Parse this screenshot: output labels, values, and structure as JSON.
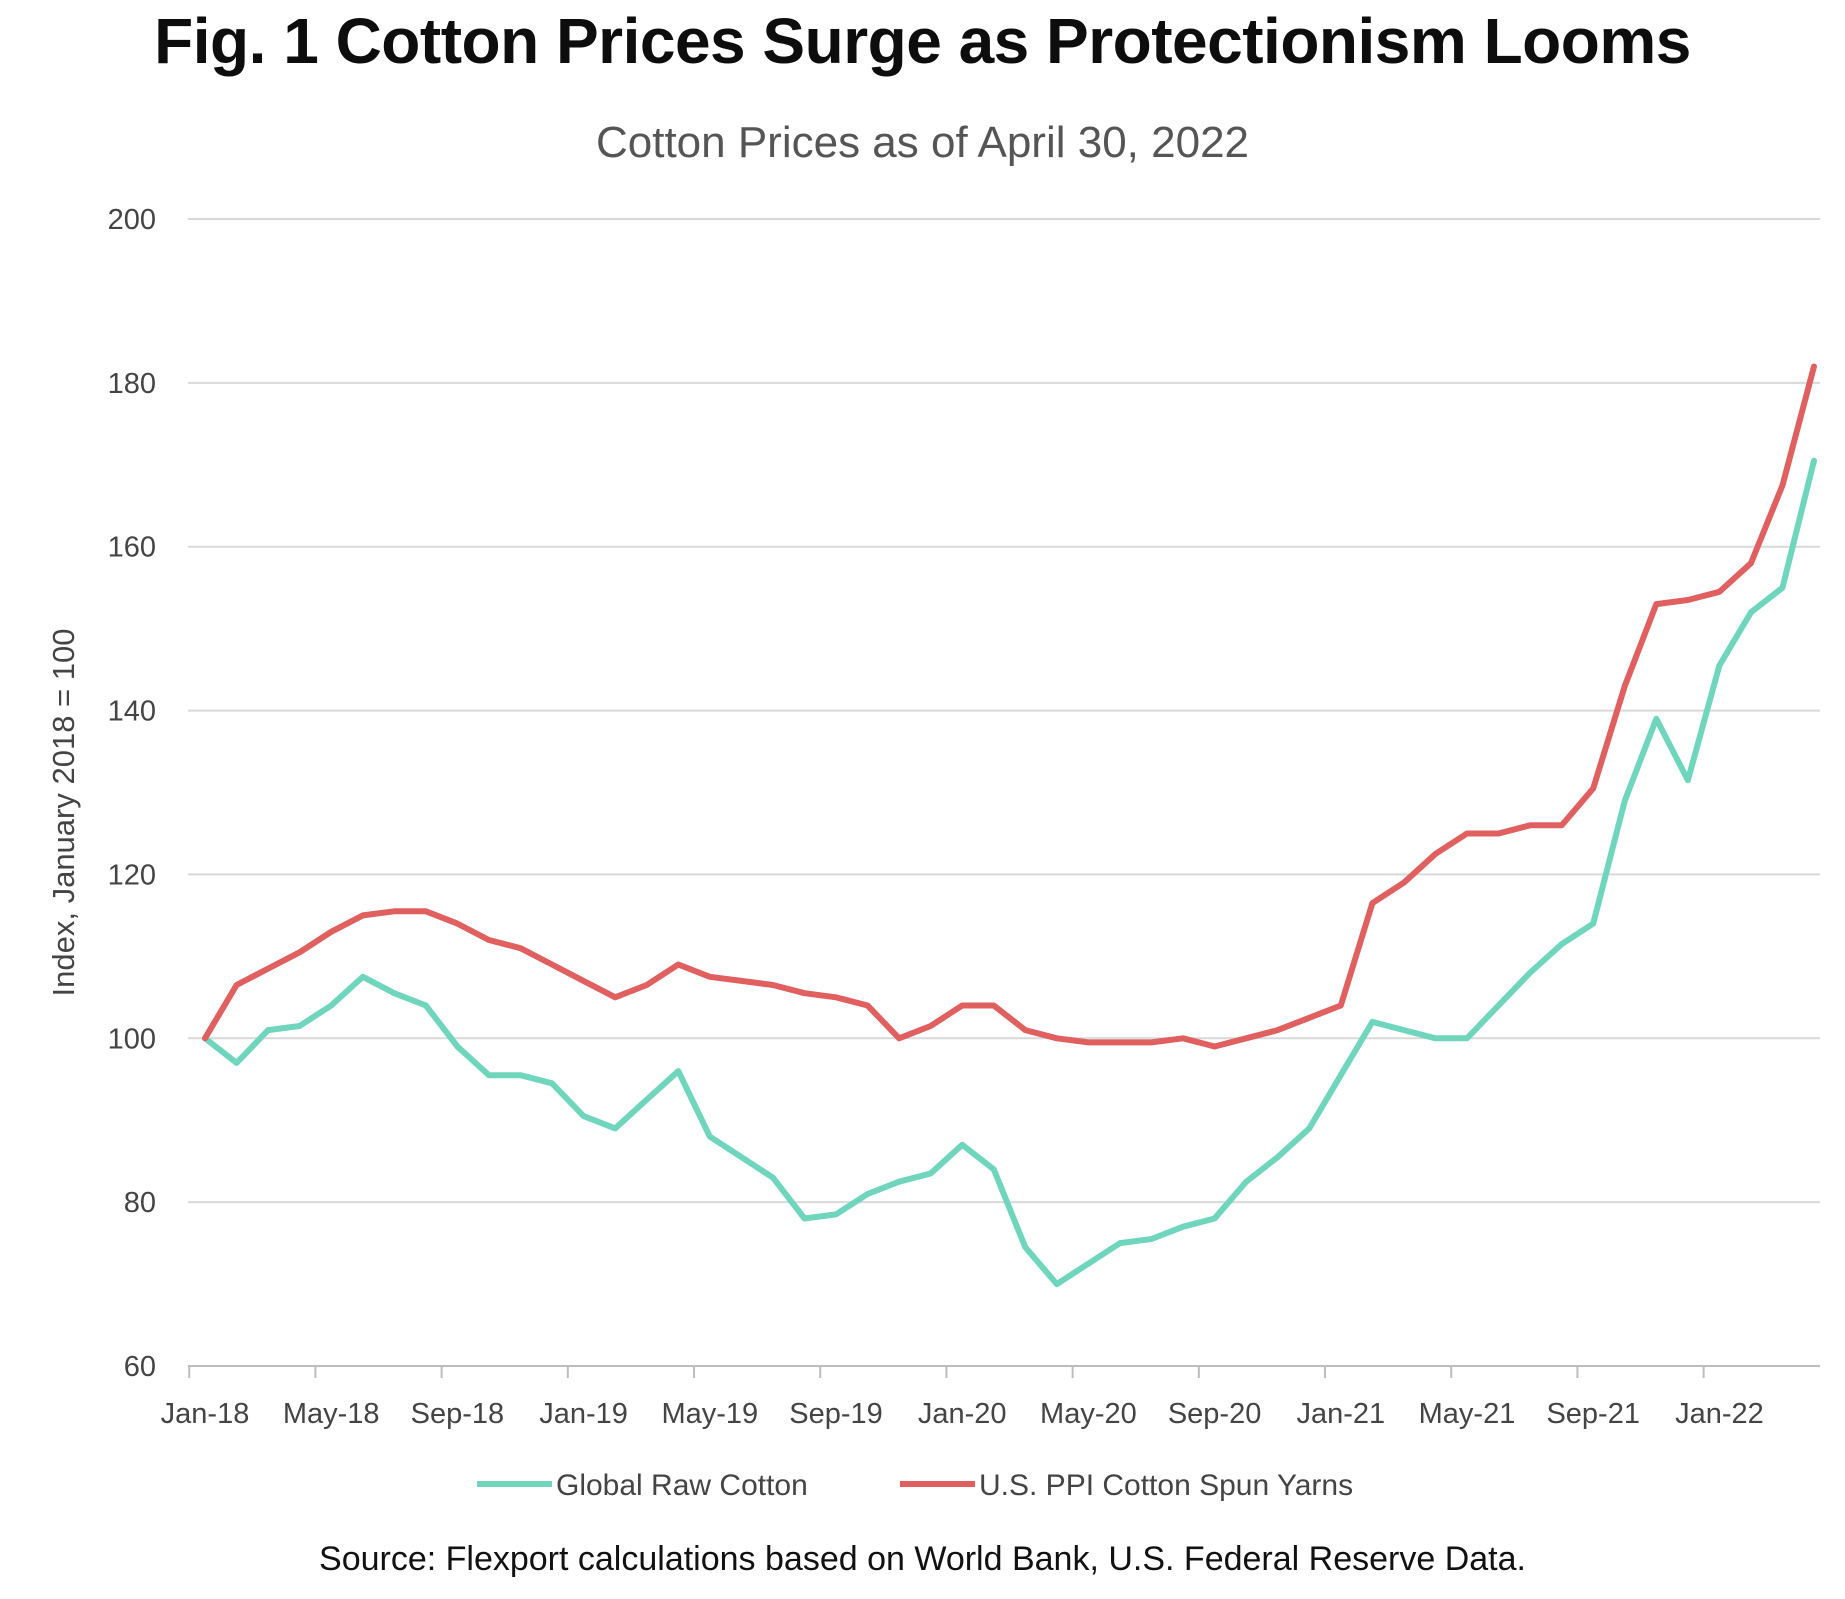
{
  "chart_data": {
    "type": "line",
    "title": "Fig. 1 Cotton Prices Surge as Protectionism Looms",
    "subtitle": "Cotton Prices as of April 30, 2022",
    "source": "Source: Flexport calculations based on World Bank, U.S. Federal Reserve Data.",
    "xlabel": "",
    "ylabel": "Index, January 2018 = 100",
    "ylim": [
      60,
      200
    ],
    "yticks": [
      60,
      80,
      100,
      120,
      140,
      160,
      180,
      200
    ],
    "grid": true,
    "legend_position": "bottom",
    "x_tick_labels": [
      "Jan-18",
      "May-18",
      "Sep-18",
      "Jan-19",
      "May-19",
      "Sep-19",
      "Jan-20",
      "May-20",
      "Sep-20",
      "Jan-21",
      "May-21",
      "Sep-21",
      "Jan-22"
    ],
    "x_tick_step_months": 4,
    "num_points": 52,
    "series": [
      {
        "name": "Global Raw Cotton",
        "color": "#6fd6bd",
        "values": [
          100,
          97,
          101,
          101.5,
          104,
          107.5,
          105.5,
          104,
          99,
          95.5,
          95.5,
          94.5,
          90.5,
          89,
          92.5,
          96,
          88,
          85.5,
          83,
          78,
          78.5,
          81,
          82.5,
          83.5,
          87,
          84,
          74.5,
          70,
          72.5,
          75,
          75.5,
          77,
          78,
          82.5,
          85.5,
          89,
          95.5,
          102,
          101,
          100,
          100,
          104,
          108,
          111.5,
          114,
          129,
          139,
          131.5,
          145.5,
          152,
          155,
          170.5
        ]
      },
      {
        "name": "U.S. PPI Cotton Spun Yarns",
        "color": "#e06060",
        "values": [
          100,
          106.5,
          108.5,
          110.5,
          113,
          115,
          115.5,
          115.5,
          114,
          112,
          111,
          109,
          107,
          105,
          106.5,
          109,
          107.5,
          107,
          106.5,
          105.5,
          105,
          104,
          100,
          101.5,
          104,
          104,
          101,
          100,
          99.5,
          99.5,
          99.5,
          100,
          99,
          100,
          101,
          102.5,
          104,
          116.5,
          119,
          122.5,
          125,
          125,
          126,
          126,
          130.5,
          143,
          153,
          153.5,
          154.5,
          158,
          167.5,
          182
        ]
      }
    ]
  }
}
